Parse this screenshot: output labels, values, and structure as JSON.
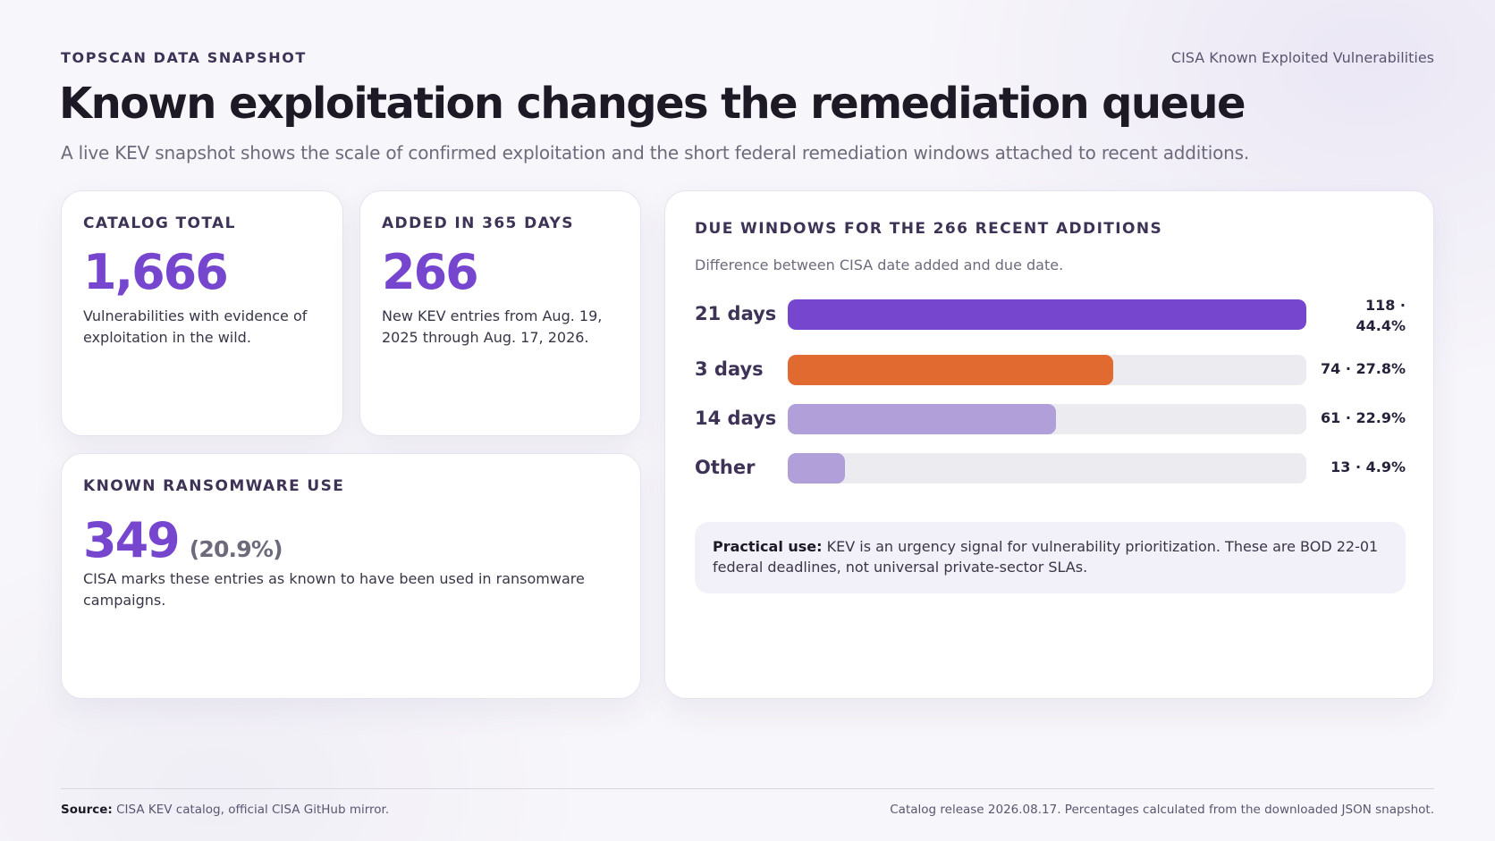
{
  "header": {
    "eyebrow": "TOPSCAN DATA SNAPSHOT",
    "source_tag": "CISA Known Exploited Vulnerabilities",
    "title": "Known exploitation changes the remediation queue",
    "subtitle": "A live KEV snapshot shows the scale of confirmed exploitation and the short federal remediation windows attached to recent additions."
  },
  "cards": {
    "catalog_total": {
      "label": "CATALOG TOTAL",
      "value": "1,666",
      "description": "Vulnerabilities with evidence of exploitation in the wild."
    },
    "added_365": {
      "label": "ADDED IN 365 DAYS",
      "value": "266",
      "description": "New KEV entries from Aug. 19, 2025 through Aug. 17, 2026."
    },
    "ransomware": {
      "label": "KNOWN RANSOMWARE USE",
      "value": "349",
      "percent": "(20.9%)",
      "description": "CISA marks these entries as known to have been used in ransomware campaigns."
    }
  },
  "chart_panel": {
    "note_lead": "Practical use:",
    "note_text": " KEV is an urgency signal for vulnerability prioritization. These are BOD 22-01 federal deadlines, not universal private-sector SLAs."
  },
  "chart_data": {
    "type": "bar",
    "orientation": "horizontal",
    "title": "DUE WINDOWS FOR THE 266 RECENT ADDITIONS",
    "subtitle": "Difference between CISA date added and due date.",
    "categories": [
      "21 days",
      "3 days",
      "14 days",
      "Other"
    ],
    "values": [
      118,
      74,
      61,
      13
    ],
    "percents": [
      44.4,
      27.8,
      22.9,
      4.9
    ],
    "value_labels": [
      "118 · 44.4%",
      "74 · 27.8%",
      "61 · 22.9%",
      "13 · 4.9%"
    ],
    "colors": [
      "#7746cf",
      "#e06a2f",
      "#b09fd8",
      "#b09fd8"
    ],
    "track_color": "#ecebef",
    "xlim": [
      0,
      118
    ],
    "grid": false
  },
  "footer": {
    "source_lead": "Source:",
    "source_text": " CISA KEV catalog, official CISA GitHub mirror.",
    "release_note": "Catalog release 2026.08.17. Percentages calculated from the downloaded JSON snapshot."
  }
}
